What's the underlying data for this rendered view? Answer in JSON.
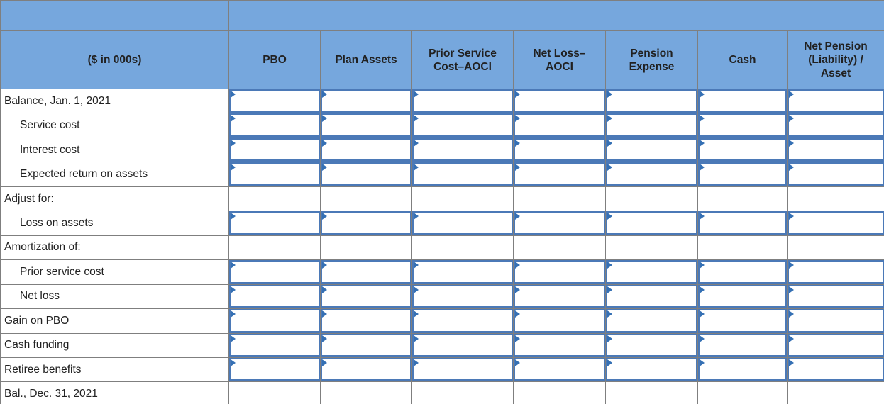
{
  "table": {
    "units_label": "($ in 000s)",
    "columns": [
      "PBO",
      "Plan Assets",
      "Prior Service Cost–AOCI",
      "Net Loss–AOCI",
      "Pension Expense",
      "Cash",
      "Net Pension (Liability) / Asset"
    ],
    "rows": [
      {
        "label": "Balance, Jan. 1, 2021",
        "indent": false,
        "inputs": true,
        "values": [
          "",
          "",
          "",
          "",
          "",
          "",
          ""
        ]
      },
      {
        "label": "Service cost",
        "indent": true,
        "inputs": true,
        "values": [
          "",
          "",
          "",
          "",
          "",
          "",
          ""
        ]
      },
      {
        "label": "Interest cost",
        "indent": true,
        "inputs": true,
        "values": [
          "",
          "",
          "",
          "",
          "",
          "",
          ""
        ]
      },
      {
        "label": "Expected return on assets",
        "indent": true,
        "inputs": true,
        "values": [
          "",
          "",
          "",
          "",
          "",
          "",
          ""
        ]
      },
      {
        "label": "Adjust for:",
        "indent": false,
        "inputs": false,
        "values": [
          "",
          "",
          "",
          "",
          "",
          "",
          ""
        ]
      },
      {
        "label": "Loss on assets",
        "indent": true,
        "inputs": true,
        "values": [
          "",
          "",
          "",
          "",
          "",
          "",
          ""
        ]
      },
      {
        "label": "Amortization of:",
        "indent": false,
        "inputs": false,
        "values": [
          "",
          "",
          "",
          "",
          "",
          "",
          ""
        ]
      },
      {
        "label": "Prior service cost",
        "indent": true,
        "inputs": true,
        "values": [
          "",
          "",
          "",
          "",
          "",
          "",
          ""
        ]
      },
      {
        "label": "Net loss",
        "indent": true,
        "inputs": true,
        "values": [
          "",
          "",
          "",
          "",
          "",
          "",
          ""
        ]
      },
      {
        "label": "Gain on PBO",
        "indent": false,
        "inputs": true,
        "values": [
          "",
          "",
          "",
          "",
          "",
          "",
          ""
        ]
      },
      {
        "label": "Cash funding",
        "indent": false,
        "inputs": true,
        "values": [
          "",
          "",
          "",
          "",
          "",
          "",
          ""
        ]
      },
      {
        "label": "Retiree benefits",
        "indent": false,
        "inputs": true,
        "values": [
          "",
          "",
          "",
          "",
          "",
          "",
          ""
        ]
      },
      {
        "label": "Bal., Dec. 31, 2021",
        "indent": false,
        "inputs": false,
        "values": [
          "",
          "",
          "",
          "",
          "",
          "",
          ""
        ]
      }
    ],
    "colors": {
      "header_blue": "#76a7dd",
      "grid_line": "#7f7f7f",
      "input_border": "#4b79b7",
      "input_flag": "#3570b4",
      "text": "#212121"
    }
  }
}
